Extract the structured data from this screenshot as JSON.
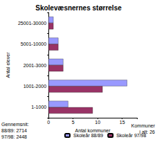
{
  "chart_data": {
    "type": "bar",
    "orientation": "horizontal",
    "title": "Skolevæsnernes størrelse",
    "x_label": "Antal kommuner",
    "y_label": "Antal elever",
    "categories": [
      "1-1000",
      "1001-2000",
      "2001-3000",
      "5001-10000",
      "25001-30000"
    ],
    "series": [
      {
        "name": "Skoleår 88/89",
        "color": "#9999ff",
        "values": [
          4,
          16,
          3,
          2,
          1
        ]
      },
      {
        "name": "Skoleår 97/98",
        "color": "#993366",
        "values": [
          9,
          11,
          3,
          2,
          1
        ]
      }
    ],
    "xlim": [
      0,
      18
    ],
    "xticks": [
      0,
      5,
      10,
      15
    ],
    "grid": false,
    "legend": "bottom",
    "annotations": [
      "Gennemsnit:",
      "88/89: 2714",
      "97/98: 2448",
      "Kommuner",
      "i alt: 26"
    ]
  }
}
